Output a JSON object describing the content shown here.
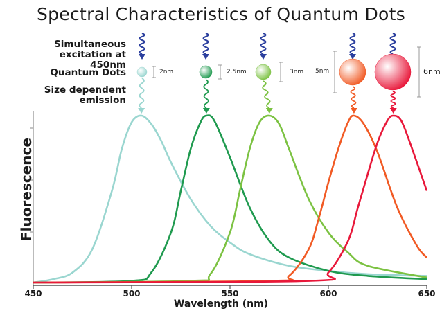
{
  "chart_data": {
    "type": "line",
    "title": "Spectral Characteristics of Quantum Dots",
    "xlabel": "Wavelength (nm)",
    "ylabel": "Fluorescence",
    "xlim": [
      450,
      650
    ],
    "xticks": [
      450,
      500,
      550,
      600,
      650
    ],
    "grid": false,
    "annotations": {
      "excitation": "Simultaneous excitation at 450nm",
      "dots_label": "Quantum Dots",
      "emission": "Size dependent emission"
    },
    "series": [
      {
        "size": "2nm",
        "color": "#9ad6d0",
        "peak": 505,
        "x": [
          450,
          460,
          470,
          480,
          490,
          495,
          500,
          505,
          510,
          515,
          520,
          530,
          540,
          550,
          560,
          580,
          600,
          620,
          650
        ],
        "y": [
          0.0,
          0.02,
          0.06,
          0.2,
          0.55,
          0.8,
          0.96,
          1.0,
          0.95,
          0.85,
          0.72,
          0.5,
          0.34,
          0.24,
          0.17,
          0.1,
          0.07,
          0.05,
          0.04
        ]
      },
      {
        "size": "2.5nm",
        "color": "#1f9a4f",
        "peak": 538,
        "x": [
          450,
          500,
          510,
          520,
          525,
          530,
          535,
          538,
          542,
          550,
          560,
          570,
          580,
          600,
          620,
          650
        ],
        "y": [
          0.0,
          0.01,
          0.06,
          0.3,
          0.55,
          0.8,
          0.96,
          1.0,
          0.97,
          0.75,
          0.45,
          0.25,
          0.15,
          0.07,
          0.04,
          0.02
        ]
      },
      {
        "size": "3nm",
        "color": "#7cc242",
        "peak": 570,
        "x": [
          450,
          530,
          540,
          550,
          555,
          560,
          565,
          570,
          575,
          580,
          590,
          600,
          610,
          620,
          650
        ],
        "y": [
          0.0,
          0.01,
          0.05,
          0.3,
          0.55,
          0.8,
          0.96,
          1.0,
          0.95,
          0.8,
          0.5,
          0.3,
          0.18,
          0.1,
          0.03
        ]
      },
      {
        "size": "5nm",
        "color": "#f15a24",
        "peak": 613,
        "x": [
          450,
          570,
          580,
          590,
          595,
          600,
          605,
          610,
          613,
          618,
          625,
          635,
          645,
          650
        ],
        "y": [
          0.0,
          0.01,
          0.04,
          0.2,
          0.38,
          0.6,
          0.8,
          0.96,
          1.0,
          0.95,
          0.78,
          0.45,
          0.22,
          0.15
        ]
      },
      {
        "size": "6nm",
        "color": "#e8183a",
        "peak": 633,
        "x": [
          450,
          590,
          600,
          610,
          615,
          620,
          625,
          630,
          633,
          637,
          642,
          650
        ],
        "y": [
          0.0,
          0.01,
          0.06,
          0.25,
          0.45,
          0.65,
          0.84,
          0.97,
          1.0,
          0.97,
          0.82,
          0.55
        ]
      }
    ]
  }
}
